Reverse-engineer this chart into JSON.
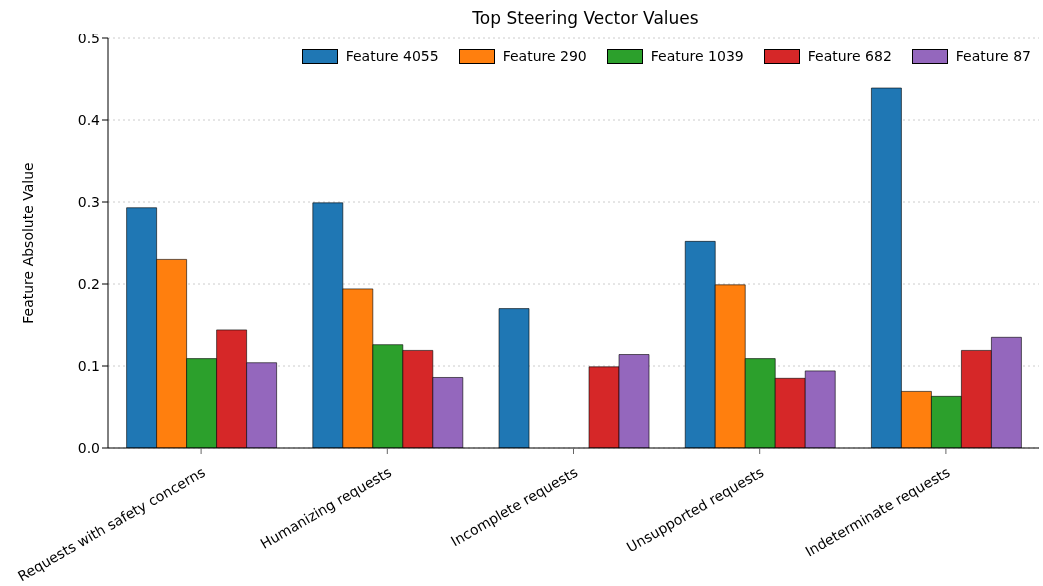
{
  "chart_data": {
    "type": "bar",
    "title": "Top Steering Vector Values",
    "ylabel": "Feature Absolute Value",
    "categories": [
      "Requests with safety concerns",
      "Humanizing requests",
      "Incomplete requests",
      "Unsupported requests",
      "Indeterminate requests"
    ],
    "series": [
      {
        "name": "Feature 4055",
        "color": "#1f77b4",
        "values": [
          0.293,
          0.299,
          0.17,
          0.252,
          0.439
        ]
      },
      {
        "name": "Feature 290",
        "color": "#ff7f0e",
        "values": [
          0.23,
          0.194,
          null,
          0.199,
          0.069
        ]
      },
      {
        "name": "Feature 1039",
        "color": "#2ca02c",
        "values": [
          0.109,
          0.126,
          null,
          0.109,
          0.063
        ]
      },
      {
        "name": "Feature 682",
        "color": "#d62728",
        "values": [
          0.144,
          0.119,
          0.099,
          0.085,
          0.119
        ]
      },
      {
        "name": "Feature 87",
        "color": "#9467bd",
        "values": [
          0.104,
          0.086,
          0.114,
          0.094,
          0.135
        ]
      }
    ],
    "ylim": [
      0,
      0.5
    ],
    "yticks": [
      {
        "value": 0,
        "label": "0.0"
      },
      {
        "value": 0.1,
        "label": "0.1"
      },
      {
        "value": 0.2,
        "label": "0.2"
      },
      {
        "value": 0.3,
        "label": "0.3"
      },
      {
        "value": 0.4,
        "label": "0.4"
      },
      {
        "value": 0.5,
        "label": "0.5"
      }
    ],
    "grid": "y",
    "legend": "top"
  }
}
